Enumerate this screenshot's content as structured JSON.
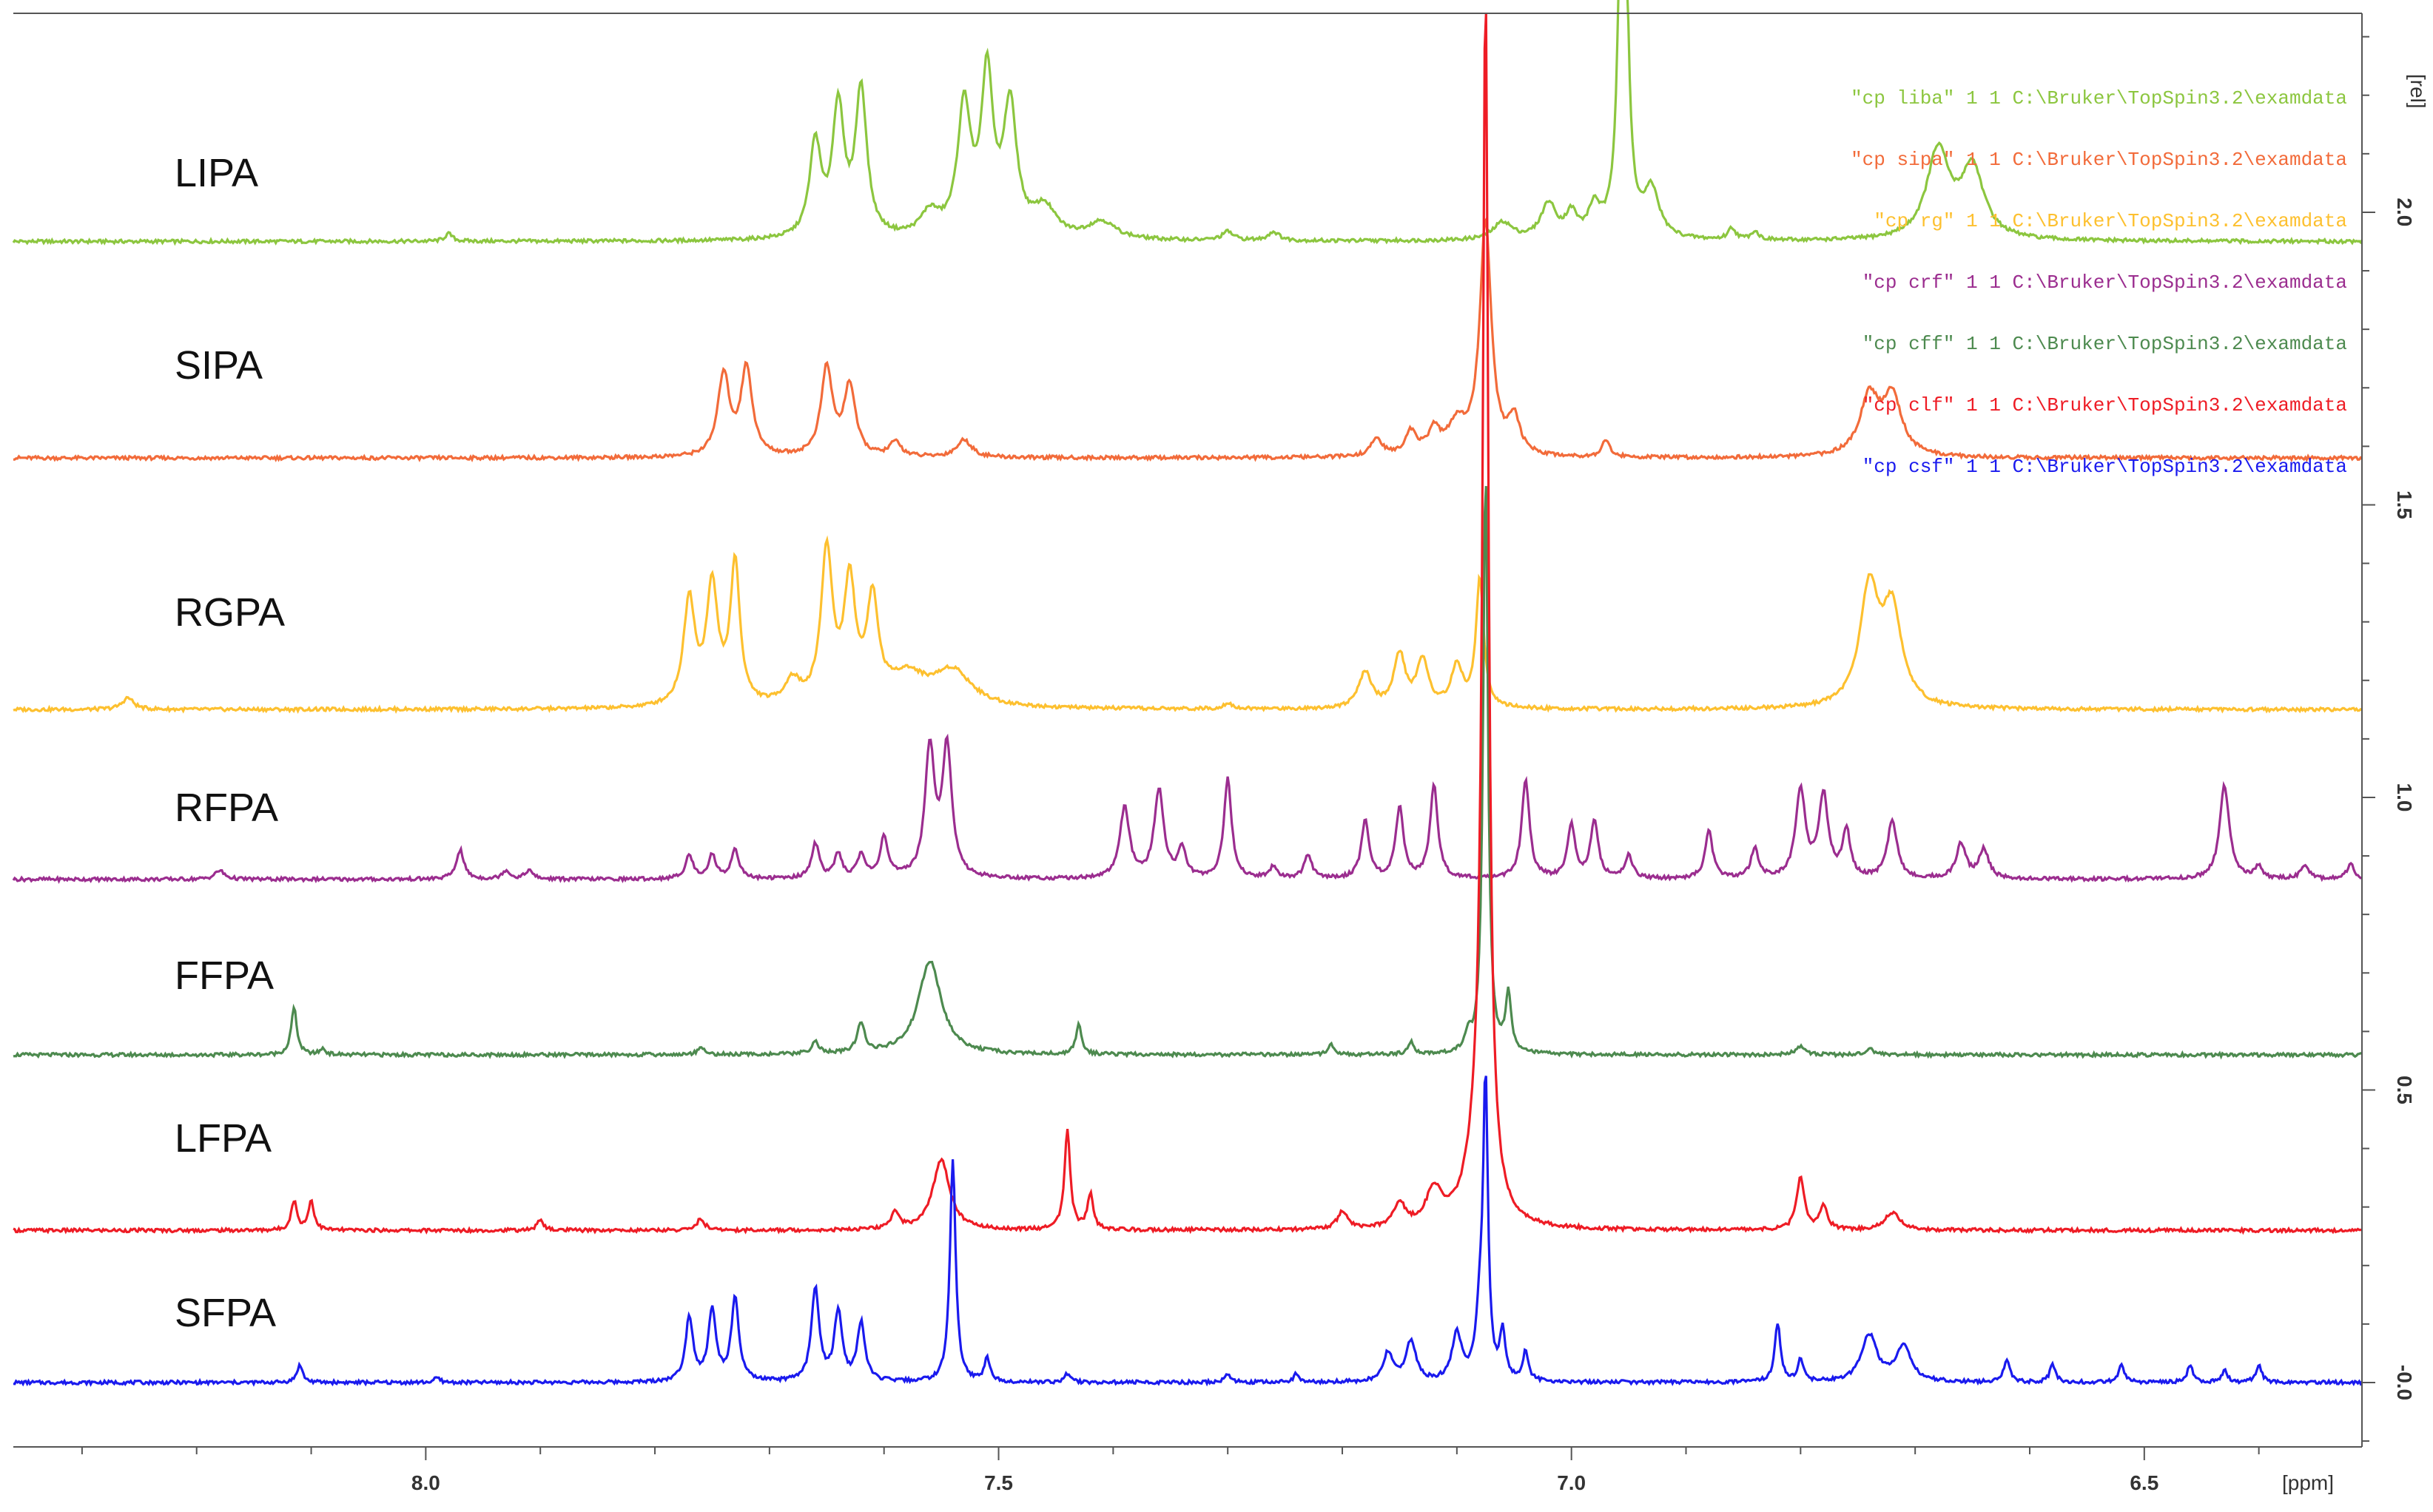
{
  "chart_data": {
    "type": "line",
    "title": "",
    "xlabel": "[ppm]",
    "ylabel": "[rel]",
    "x_reversed": true,
    "xlim": [
      8.36,
      6.31
    ],
    "ylim": [
      -0.11,
      2.34
    ],
    "x_ticks": [
      "8.0",
      "7.5",
      "7.0",
      "6.5"
    ],
    "x_tick_values": [
      8.0,
      7.5,
      7.0,
      6.5
    ],
    "y_ticks": [
      "-0.0",
      "0.5",
      "1.0",
      "1.5",
      "2.0"
    ],
    "y_tick_values": [
      0.0,
      0.5,
      1.0,
      1.5,
      2.0
    ],
    "grid": false,
    "legend_position": "top-right",
    "legend_entries": [
      {
        "text": "\"cp liba\"  1  1  C:\\Bruker\\TopSpin3.2\\examdata",
        "color": "#8cc63f"
      },
      {
        "text": "\"cp sipa\"  1  1  C:\\Bruker\\TopSpin3.2\\examdata",
        "color": "#f26b3a"
      },
      {
        "text": "\"cp rg\"  1  1  C:\\Bruker\\TopSpin3.2\\examdata",
        "color": "#fdc02f"
      },
      {
        "text": "\"cp crf\"  1  1  C:\\Bruker\\TopSpin3.2\\examdata",
        "color": "#9b2d8f"
      },
      {
        "text": "\"cp cff\"  1  1  C:\\Bruker\\TopSpin3.2\\examdata",
        "color": "#4d8a4f"
      },
      {
        "text": "\"cp clf\"  1  1  C:\\Bruker\\TopSpin3.2\\examdata",
        "color": "#ee1c25"
      },
      {
        "text": "\"cp csf\"  1  1  C:\\Bruker\\TopSpin3.2\\examdata",
        "color": "#1a1aee"
      }
    ],
    "series": [
      {
        "name": "LIPA",
        "color": "#8cc63f",
        "baseline": 1.95,
        "end_baseline": 1.95,
        "peaks": [
          [
            7.98,
            0.013,
            0.004
          ],
          [
            7.66,
            0.16,
            0.006
          ],
          [
            7.64,
            0.22,
            0.006
          ],
          [
            7.62,
            0.25,
            0.006
          ],
          [
            7.56,
            0.04,
            0.01
          ],
          [
            7.53,
            0.22,
            0.007
          ],
          [
            7.51,
            0.27,
            0.006
          ],
          [
            7.49,
            0.22,
            0.007
          ],
          [
            7.46,
            0.05,
            0.012
          ],
          [
            7.41,
            0.03,
            0.015
          ],
          [
            7.3,
            0.015,
            0.006
          ],
          [
            7.26,
            0.015,
            0.006
          ],
          [
            7.06,
            0.03,
            0.01
          ],
          [
            7.02,
            0.06,
            0.008
          ],
          [
            7.0,
            0.04,
            0.006
          ],
          [
            6.98,
            0.05,
            0.006
          ],
          [
            6.955,
            1.0,
            0.0035
          ],
          [
            6.93,
            0.08,
            0.008
          ],
          [
            6.86,
            0.02,
            0.004
          ],
          [
            6.84,
            0.015,
            0.004
          ],
          [
            6.68,
            0.15,
            0.012
          ],
          [
            6.65,
            0.12,
            0.012
          ]
        ]
      },
      {
        "name": "SIPA",
        "color": "#f26b3a",
        "baseline": 1.58,
        "end_baseline": 1.58,
        "peaks": [
          [
            7.74,
            0.14,
            0.006
          ],
          [
            7.72,
            0.15,
            0.006
          ],
          [
            7.65,
            0.15,
            0.006
          ],
          [
            7.63,
            0.12,
            0.006
          ],
          [
            7.59,
            0.025,
            0.006
          ],
          [
            7.53,
            0.03,
            0.008
          ],
          [
            7.17,
            0.03,
            0.006
          ],
          [
            7.14,
            0.04,
            0.006
          ],
          [
            7.12,
            0.04,
            0.006
          ],
          [
            7.1,
            0.05,
            0.01
          ],
          [
            7.075,
            0.4,
            0.006
          ],
          [
            7.05,
            0.06,
            0.006
          ],
          [
            6.97,
            0.03,
            0.004
          ],
          [
            6.74,
            0.1,
            0.01
          ],
          [
            6.72,
            0.1,
            0.01
          ]
        ]
      },
      {
        "name": "RGPA",
        "color": "#fdc02f",
        "baseline": 1.15,
        "end_baseline": 1.15,
        "peaks": [
          [
            8.26,
            0.02,
            0.006
          ],
          [
            7.77,
            0.18,
            0.006
          ],
          [
            7.75,
            0.2,
            0.006
          ],
          [
            7.73,
            0.24,
            0.005
          ],
          [
            7.65,
            0.26,
            0.006
          ],
          [
            7.63,
            0.2,
            0.006
          ],
          [
            7.61,
            0.17,
            0.006
          ],
          [
            7.68,
            0.04,
            0.008
          ],
          [
            7.58,
            0.05,
            0.02
          ],
          [
            7.54,
            0.06,
            0.02
          ],
          [
            7.3,
            0.01,
            0.005
          ],
          [
            7.18,
            0.06,
            0.007
          ],
          [
            7.15,
            0.09,
            0.006
          ],
          [
            7.13,
            0.08,
            0.006
          ],
          [
            7.1,
            0.07,
            0.006
          ],
          [
            7.08,
            0.22,
            0.004
          ],
          [
            6.74,
            0.2,
            0.01
          ],
          [
            6.72,
            0.16,
            0.01
          ]
        ]
      },
      {
        "name": "RFPA",
        "color": "#9b2d8f",
        "baseline": 0.86,
        "end_baseline": 0.86,
        "peaks": [
          [
            8.18,
            0.015,
            0.005
          ],
          [
            7.97,
            0.05,
            0.004
          ],
          [
            7.93,
            0.015,
            0.004
          ],
          [
            7.91,
            0.015,
            0.004
          ],
          [
            7.77,
            0.04,
            0.004
          ],
          [
            7.75,
            0.04,
            0.004
          ],
          [
            7.73,
            0.05,
            0.004
          ],
          [
            7.66,
            0.06,
            0.004
          ],
          [
            7.64,
            0.04,
            0.004
          ],
          [
            7.62,
            0.04,
            0.004
          ],
          [
            7.6,
            0.07,
            0.004
          ],
          [
            7.56,
            0.22,
            0.005
          ],
          [
            7.545,
            0.22,
            0.005
          ],
          [
            7.39,
            0.12,
            0.005
          ],
          [
            7.36,
            0.15,
            0.005
          ],
          [
            7.34,
            0.05,
            0.004
          ],
          [
            7.3,
            0.17,
            0.004
          ],
          [
            7.26,
            0.02,
            0.004
          ],
          [
            7.23,
            0.04,
            0.004
          ],
          [
            7.18,
            0.1,
            0.004
          ],
          [
            7.15,
            0.12,
            0.004
          ],
          [
            7.12,
            0.16,
            0.004
          ],
          [
            7.04,
            0.17,
            0.004
          ],
          [
            7.0,
            0.09,
            0.004
          ],
          [
            6.98,
            0.1,
            0.004
          ],
          [
            6.95,
            0.04,
            0.004
          ],
          [
            6.88,
            0.08,
            0.004
          ],
          [
            6.84,
            0.05,
            0.004
          ],
          [
            6.8,
            0.15,
            0.005
          ],
          [
            6.78,
            0.14,
            0.005
          ],
          [
            6.76,
            0.08,
            0.004
          ],
          [
            6.72,
            0.1,
            0.005
          ],
          [
            6.66,
            0.06,
            0.005
          ],
          [
            6.64,
            0.05,
            0.005
          ],
          [
            6.43,
            0.16,
            0.005
          ],
          [
            6.4,
            0.02,
            0.004
          ],
          [
            6.36,
            0.025,
            0.004
          ],
          [
            6.32,
            0.025,
            0.004
          ]
        ]
      },
      {
        "name": "FFPA",
        "color": "#4d8a4f",
        "baseline": 0.56,
        "end_baseline": 0.56,
        "peaks": [
          [
            8.115,
            0.08,
            0.003
          ],
          [
            8.09,
            0.01,
            0.003
          ],
          [
            7.76,
            0.015,
            0.003
          ],
          [
            7.66,
            0.02,
            0.004
          ],
          [
            7.62,
            0.05,
            0.004
          ],
          [
            7.56,
            0.16,
            0.012
          ],
          [
            7.43,
            0.05,
            0.003
          ],
          [
            7.21,
            0.02,
            0.003
          ],
          [
            7.14,
            0.02,
            0.003
          ],
          [
            7.09,
            0.03,
            0.003
          ],
          [
            7.075,
            1.0,
            0.0025
          ],
          [
            7.055,
            0.1,
            0.003
          ],
          [
            6.8,
            0.015,
            0.005
          ],
          [
            6.74,
            0.01,
            0.005
          ]
        ]
      },
      {
        "name": "LFPA",
        "color": "#ee1c25",
        "baseline": 0.26,
        "end_baseline": 0.26,
        "peaks": [
          [
            8.115,
            0.05,
            0.003
          ],
          [
            8.1,
            0.05,
            0.003
          ],
          [
            7.9,
            0.02,
            0.003
          ],
          [
            7.76,
            0.02,
            0.004
          ],
          [
            7.59,
            0.03,
            0.004
          ],
          [
            7.55,
            0.12,
            0.009
          ],
          [
            7.44,
            0.17,
            0.003
          ],
          [
            7.42,
            0.06,
            0.003
          ],
          [
            7.2,
            0.03,
            0.005
          ],
          [
            7.15,
            0.04,
            0.006
          ],
          [
            7.12,
            0.06,
            0.008
          ],
          [
            7.08,
            0.15,
            0.012
          ],
          [
            7.075,
            2.0,
            0.003
          ],
          [
            6.8,
            0.09,
            0.004
          ],
          [
            6.78,
            0.04,
            0.004
          ],
          [
            6.72,
            0.03,
            0.008
          ]
        ]
      },
      {
        "name": "SFPA",
        "color": "#1a1aee",
        "baseline": 0.0,
        "end_baseline": 0.0,
        "peaks": [
          [
            8.11,
            0.03,
            0.003
          ],
          [
            7.99,
            0.008,
            0.003
          ],
          [
            7.77,
            0.11,
            0.004
          ],
          [
            7.75,
            0.12,
            0.004
          ],
          [
            7.73,
            0.14,
            0.004
          ],
          [
            7.66,
            0.16,
            0.004
          ],
          [
            7.64,
            0.12,
            0.004
          ],
          [
            7.62,
            0.1,
            0.004
          ],
          [
            7.54,
            0.38,
            0.003
          ],
          [
            7.51,
            0.04,
            0.003
          ],
          [
            7.44,
            0.015,
            0.003
          ],
          [
            7.3,
            0.015,
            0.003
          ],
          [
            7.24,
            0.015,
            0.003
          ],
          [
            7.16,
            0.05,
            0.005
          ],
          [
            7.14,
            0.07,
            0.005
          ],
          [
            7.1,
            0.08,
            0.005
          ],
          [
            7.08,
            0.1,
            0.004
          ],
          [
            7.075,
            0.5,
            0.0025
          ],
          [
            7.06,
            0.08,
            0.003
          ],
          [
            7.04,
            0.05,
            0.003
          ],
          [
            6.82,
            0.1,
            0.003
          ],
          [
            6.8,
            0.04,
            0.003
          ],
          [
            6.74,
            0.08,
            0.008
          ],
          [
            6.71,
            0.06,
            0.008
          ],
          [
            6.62,
            0.04,
            0.003
          ],
          [
            6.58,
            0.03,
            0.003
          ],
          [
            6.52,
            0.03,
            0.003
          ],
          [
            6.46,
            0.03,
            0.003
          ],
          [
            6.43,
            0.02,
            0.003
          ],
          [
            6.4,
            0.03,
            0.003
          ]
        ]
      }
    ],
    "series_labels": [
      "LIPA",
      "SIPA",
      "RGPA",
      "RFPA",
      "FFPA",
      "LFPA",
      "SFPA"
    ]
  }
}
